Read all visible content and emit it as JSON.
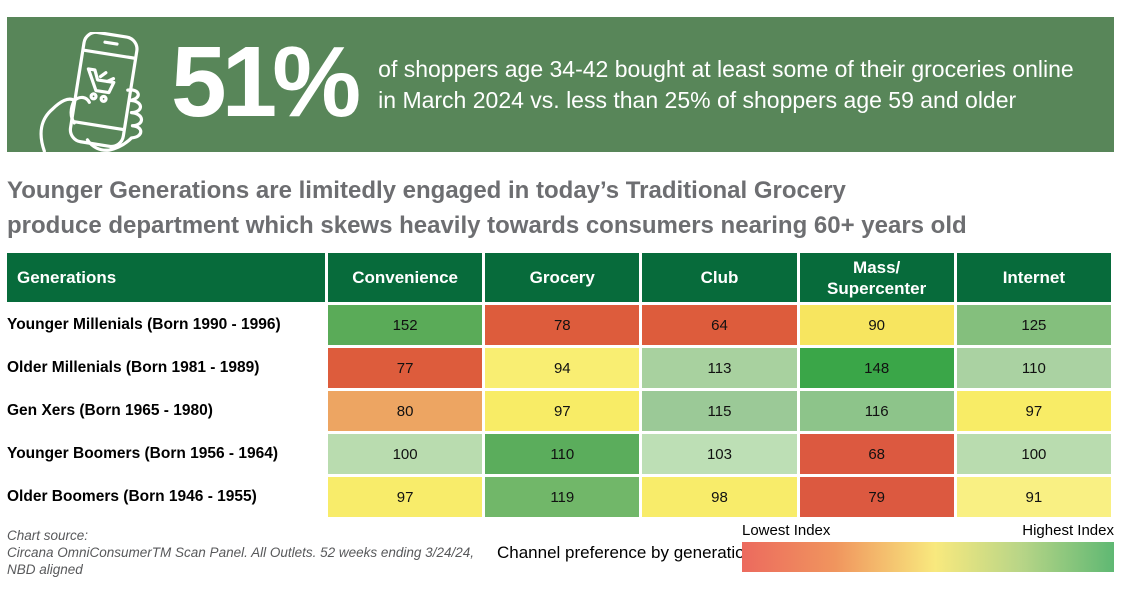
{
  "banner": {
    "bg_color": "#588659",
    "stat_value": "51%",
    "description": "of shoppers age 34-42 bought at least some of their groceries online\nin March 2024 vs. less than 25% of shoppers age 59 and older",
    "icon": "phone-shopping-cart-icon"
  },
  "headline": "Younger Generations are limitedly engaged in today’s Traditional Grocery\nproduce department which skews heavily towards consumers nearing 60+ years old",
  "chart_data": {
    "type": "heatmap",
    "title": "Channel preference by generation",
    "header_bg": "#076b3b",
    "columns": [
      "Generations",
      "Convenience",
      "Grocery",
      "Club",
      "Mass/\nSupercenter",
      "Internet"
    ],
    "rows": [
      {
        "label": "Younger Millenials (Born 1990 - 1996)",
        "values": [
          152,
          78,
          64,
          90,
          125
        ],
        "colors": [
          "#5aab58",
          "#dd5c3c",
          "#dd5c3c",
          "#f7e55f",
          "#84bf7d"
        ]
      },
      {
        "label": "Older Millenials (Born 1981 - 1989)",
        "values": [
          77,
          94,
          113,
          148,
          110
        ],
        "colors": [
          "#dd5c3c",
          "#f9ee72",
          "#a8d19f",
          "#3aa648",
          "#aad2a2"
        ]
      },
      {
        "label": "Gen Xers (Born 1965 - 1980)",
        "values": [
          80,
          97,
          115,
          116,
          97
        ],
        "colors": [
          "#eda562",
          "#f8ec66",
          "#9bc997",
          "#8dc48a",
          "#f8ec66"
        ]
      },
      {
        "label": "Younger Boomers (Born 1956 - 1964)",
        "values": [
          100,
          110,
          103,
          68,
          100
        ],
        "colors": [
          "#b9dcaf",
          "#5bad5c",
          "#bddfb5",
          "#dc5940",
          "#b9dcaf"
        ]
      },
      {
        "label": "Older Boomers (Born 1946 - 1955)",
        "values": [
          97,
          119,
          98,
          79,
          91
        ],
        "colors": [
          "#f8ec6a",
          "#71b769",
          "#f8ec6a",
          "#dc5940",
          "#f9f083"
        ]
      }
    ],
    "scale": {
      "low_label": "Lowest Index",
      "high_label": "Highest Index",
      "gradient": [
        "#ec6a5e",
        "#f0955e",
        "#f8e97e",
        "#b8d587",
        "#5fb873"
      ]
    }
  },
  "footer": {
    "source_label": "Chart source:",
    "source_line1": "Circana OmniConsumerTM Scan Panel. All Outlets. 52 weeks ending 3/24/24,",
    "source_line2": "NBD aligned",
    "channel_note": "Channel preference by generation >"
  }
}
